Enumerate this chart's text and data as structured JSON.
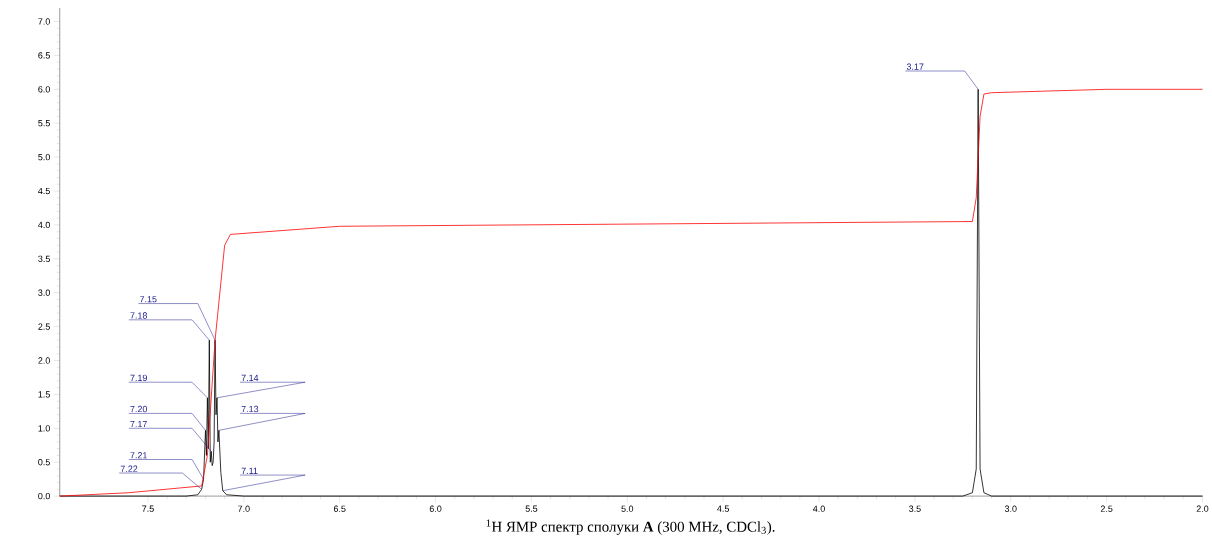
{
  "chart_data": {
    "type": "line",
    "title": "$^{1}$H ЯМР спектр сполуки **A** (300 MHz, CDCl$_{3}$).",
    "series": [
      {
        "color": "#000000",
        "x": [
          7.96,
          7.3,
          7.24,
          7.22,
          7.21,
          7.2,
          7.195,
          7.19,
          7.185,
          7.18,
          7.175,
          7.17,
          7.165,
          7.16,
          7.155,
          7.15,
          7.145,
          7.14,
          7.135,
          7.13,
          7.12,
          7.11,
          7.09,
          7.0,
          3.25,
          3.2,
          3.18,
          3.17,
          3.16,
          3.14,
          3.1,
          2.0
        ],
        "values": [
          0,
          0,
          0.02,
          0.1,
          0.25,
          0.97,
          0.6,
          1.45,
          0.7,
          2.3,
          0.5,
          0.66,
          0.45,
          0.5,
          0.8,
          2.3,
          1.2,
          1.45,
          0.8,
          0.97,
          0.35,
          0.08,
          0.02,
          0,
          0,
          0.05,
          0.4,
          6.0,
          0.4,
          0.05,
          0,
          0
        ]
      },
      {
        "color": "#ff0000",
        "x": [
          7.96,
          7.6,
          7.22,
          7.19,
          7.15,
          7.1,
          7.07,
          6.5,
          3.2,
          3.18,
          3.16,
          3.14,
          3.1,
          2.5,
          2.0
        ],
        "values": [
          0,
          0.05,
          0.15,
          0.6,
          2.3,
          3.7,
          3.86,
          3.98,
          4.05,
          4.4,
          5.6,
          5.93,
          5.95,
          6.0,
          6.0
        ]
      }
    ],
    "xlim": [
      7.96,
      2.0
    ],
    "xticks": [
      {
        "value": 7.5,
        "label": "7.5"
      },
      {
        "value": 7,
        "label": "7.0"
      },
      {
        "value": 6.5,
        "label": "6.5"
      },
      {
        "value": 6,
        "label": "6.0"
      },
      {
        "value": 5.5,
        "label": "5.5"
      },
      {
        "value": 5,
        "label": "5.0"
      },
      {
        "value": 4.5,
        "label": "4.5"
      },
      {
        "value": 4,
        "label": "4.0"
      },
      {
        "value": 3.5,
        "label": "3.5"
      },
      {
        "value": 3,
        "label": "3.0"
      },
      {
        "value": 2.5,
        "label": "2.5"
      },
      {
        "value": 2,
        "label": "2.0"
      }
    ],
    "ylim": [
      0,
      7.2
    ],
    "yticks": [
      {
        "value": 0,
        "label": "0.0"
      },
      {
        "value": 0.5,
        "label": "0.5"
      },
      {
        "value": 1,
        "label": "1.0"
      },
      {
        "value": 1.5,
        "label": "1.5"
      },
      {
        "value": 2,
        "label": "2.0"
      },
      {
        "value": 2.5,
        "label": "2.5"
      },
      {
        "value": 3,
        "label": "3.0"
      },
      {
        "value": 3.5,
        "label": "3.5"
      },
      {
        "value": 4,
        "label": "4.0"
      },
      {
        "value": 4.5,
        "label": "4.5"
      },
      {
        "value": 5,
        "label": "5.0"
      },
      {
        "value": 5.5,
        "label": "5.5"
      },
      {
        "value": 6,
        "label": "6.0"
      },
      {
        "value": 6.5,
        "label": "6.5"
      },
      {
        "value": 7,
        "label": "7.0"
      }
    ],
    "annotations": [
      {
        "text": "7.15",
        "x": 7.15,
        "y": 2.3
      },
      {
        "text": "7.18",
        "x": 7.18,
        "y": 2.3
      },
      {
        "text": "7.19",
        "x": 7.19,
        "y": 1.45
      },
      {
        "text": "7.20",
        "x": 7.2,
        "y": 0.97
      },
      {
        "text": "7.17",
        "x": 7.17,
        "y": 0.66
      },
      {
        "text": "7.21",
        "x": 7.21,
        "y": 0.25
      },
      {
        "text": "7.22",
        "x": 7.22,
        "y": 0.1
      },
      {
        "text": "7.14",
        "x": 7.14,
        "y": 1.45
      },
      {
        "text": "7.13",
        "x": 7.13,
        "y": 0.97
      },
      {
        "text": "7.11",
        "x": 7.11,
        "y": 0.08
      },
      {
        "text": "3.17",
        "x": 3.17,
        "y": 6.0
      }
    ]
  }
}
